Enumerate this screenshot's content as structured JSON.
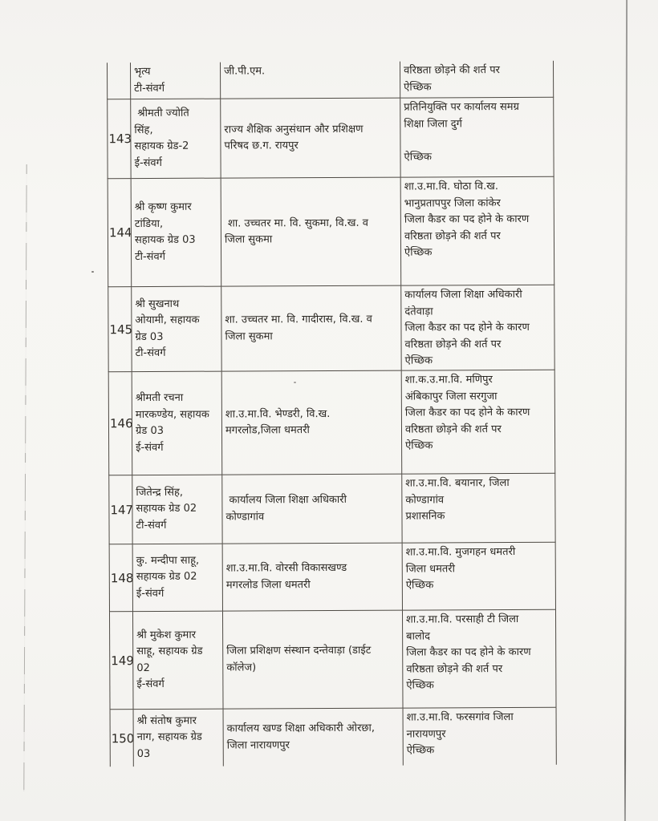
{
  "colors": {
    "page_bg": "#f5f4f1",
    "ink": "#2b2823",
    "table_line": "#4e4a44"
  },
  "table": {
    "leading_row": {
      "serial": "",
      "name_designation": "भृत्य\nटी-संवर्ग",
      "present_posting": "जी.पी.एम.",
      "new_posting_remarks": "वरिष्ठता छोड़ने की शर्त पर\nऐच्छिक"
    },
    "rows": [
      {
        "serial": "143",
        "name_designation": " श्रीमती ज्योति\nसिंह,\nसहायक ग्रेड-2\nई-संवर्ग",
        "present_posting": "राज्य शैक्षिक अनुसंधान और प्रशिक्षण\nपरिषद छ.ग. रायपुर",
        "new_posting_remarks": "प्रतिनियुक्ति पर कार्यालय समग्र\nशिक्षा जिला दुर्ग\n\nऐच्छिक"
      },
      {
        "serial": "144",
        "name_designation": "श्री कृष्ण कुमार\nटांडिया,\nसहायक ग्रेड 03\nटी-संवर्ग",
        "present_posting": " शा. उच्चतर मा. वि. सुकमा, वि.ख. व\nजिला सुकमा",
        "new_posting_remarks": "शा.उ.मा.वि. घोठा वि.ख.\nभानुप्रतापपुर जिला कांकेर\nजिला कैडर का पद होने के कारण\nवरिष्ठता छोड़ने की शर्त पर\nऐच्छिक"
      },
      {
        "serial": "145",
        "name_designation": "श्री सुखनाथ\nओयामी, सहायक\nग्रेड 03\nटी-संवर्ग",
        "present_posting": "शा. उच्चतर मा. वि. गादीरास, वि.ख. व\nजिला सुकमा",
        "new_posting_remarks": "कार्यालय जिला शिक्षा अधिकारी\nदंतेवाड़ा\nजिला कैडर का पद होने के कारण\nवरिष्ठता छोड़ने की शर्त पर\nऐच्छिक"
      },
      {
        "serial": "146",
        "name_designation": "श्रीमती रचना\nमारकण्डेय, सहायक\nग्रेड 03\nई-संवर्ग",
        "present_posting": "शा.उ.मा.वि. भेण्डरी, वि.ख.\nमगरलोड,जिला धमतरी",
        "new_posting_remarks": "शा.क.उ.मा.वि. मणिपुर\nअंबिकापुर जिला सरगुजा\nजिला कैडर का पद होने के कारण\nवरिष्ठता छोड़ने की शर्त पर\nऐच्छिक"
      },
      {
        "serial": "147",
        "name_designation": "जितेन्द्र सिंह,\nसहायक ग्रेड 02\nटी-संवर्ग",
        "present_posting": " कार्यालय जिला शिक्षा अधिकारी\nकोण्डागांव",
        "new_posting_remarks": "शा.उ.मा.वि. बयानार, जिला\nकोण्डागांव\nप्रशासनिक"
      },
      {
        "serial": "148",
        "name_designation": "कु. मन्दीपा साहू,\nसहायक ग्रेड 02\nई-संवर्ग",
        "present_posting": "शा.उ.मा.वि. वोरसी विकासखण्ड\nमगरलोड जिला धमतरी",
        "new_posting_remarks": "शा.उ.मा.वि. मुजगहन धमतरी\nजिला धमतरी\nऐच्छिक"
      },
      {
        "serial": "149",
        "name_designation": "श्री मुकेश कुमार\nसाहू, सहायक ग्रेड\n02\nई-संवर्ग",
        "present_posting": "जिला प्रशिक्षण संस्थान दन्तेवाड़ा (डाईट\nकॉलेज)",
        "new_posting_remarks": "शा.उ.मा.वि. परसाही टी जिला\nबालोद\nजिला कैडर का पद होने के कारण\nवरिष्ठता छोड़ने की शर्त पर\nऐच्छिक"
      },
      {
        "serial": "150",
        "name_designation": "श्री संतोष कुमार\nनाग, सहायक ग्रेड\n03",
        "present_posting": "कार्यालय खण्ड शिक्षा अधिकारी ओरछा,\nजिला नारायणपुर",
        "new_posting_remarks": "शा.उ.मा.वि. फरसगांव जिला\nनारायणपुर\nऐच्छिक"
      }
    ]
  }
}
